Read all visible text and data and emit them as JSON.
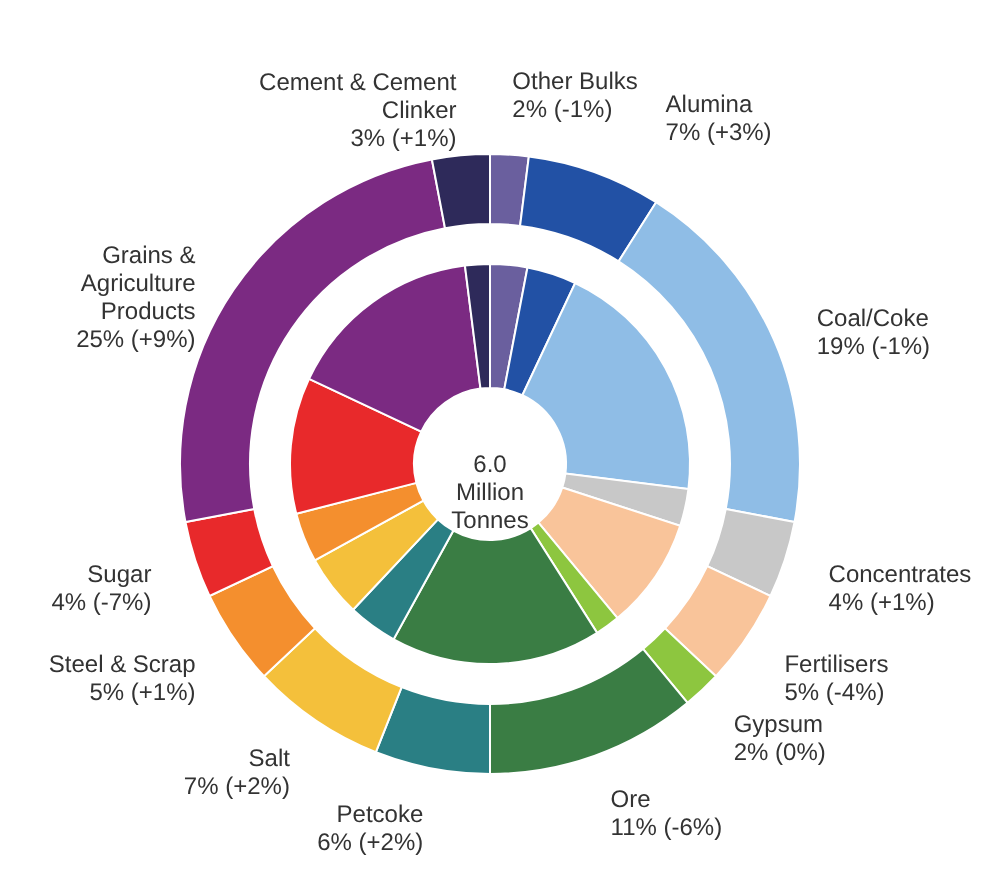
{
  "chart_data": {
    "type": "donut",
    "categories": [
      "Other Bulks",
      "Alumina",
      "Coal/Coke",
      "Concentrates",
      "Fertilisers",
      "Gypsum",
      "Ore",
      "Petcoke",
      "Salt",
      "Steel & Scrap",
      "Sugar",
      "Grains & Agriculture Products",
      "Cement & Cement Clinker"
    ],
    "colors": [
      "#6a5f9e",
      "#2251a5",
      "#8fbde6",
      "#c8c8c8",
      "#f9c49a",
      "#8dc63f",
      "#3a7d44",
      "#2a7f84",
      "#f4c03b",
      "#f48f2e",
      "#e8292b",
      "#7b2a82",
      "#2e2a5a"
    ],
    "series": [
      {
        "values": [
          2,
          7,
          19,
          4,
          5,
          2,
          11,
          6,
          7,
          5,
          4,
          25,
          3
        ],
        "value_labels": [
          "2% (-1%)",
          "7% (+3%)",
          "19% (-1%)",
          "4% (+1%)",
          "5% (-4%)",
          "2% (0%)",
          "11% (-6%)",
          "6% (+2%)",
          "7% (+2%)",
          "5% (+1%)",
          "4% (-7%)",
          "25% (+9%)",
          "3% (+1%)"
        ]
      },
      {
        "values": [
          3,
          4,
          20,
          3,
          9,
          2,
          17,
          4,
          5,
          4,
          11,
          16,
          2
        ]
      }
    ],
    "annotations": [
      "6.0 Million Tonnes"
    ]
  }
}
